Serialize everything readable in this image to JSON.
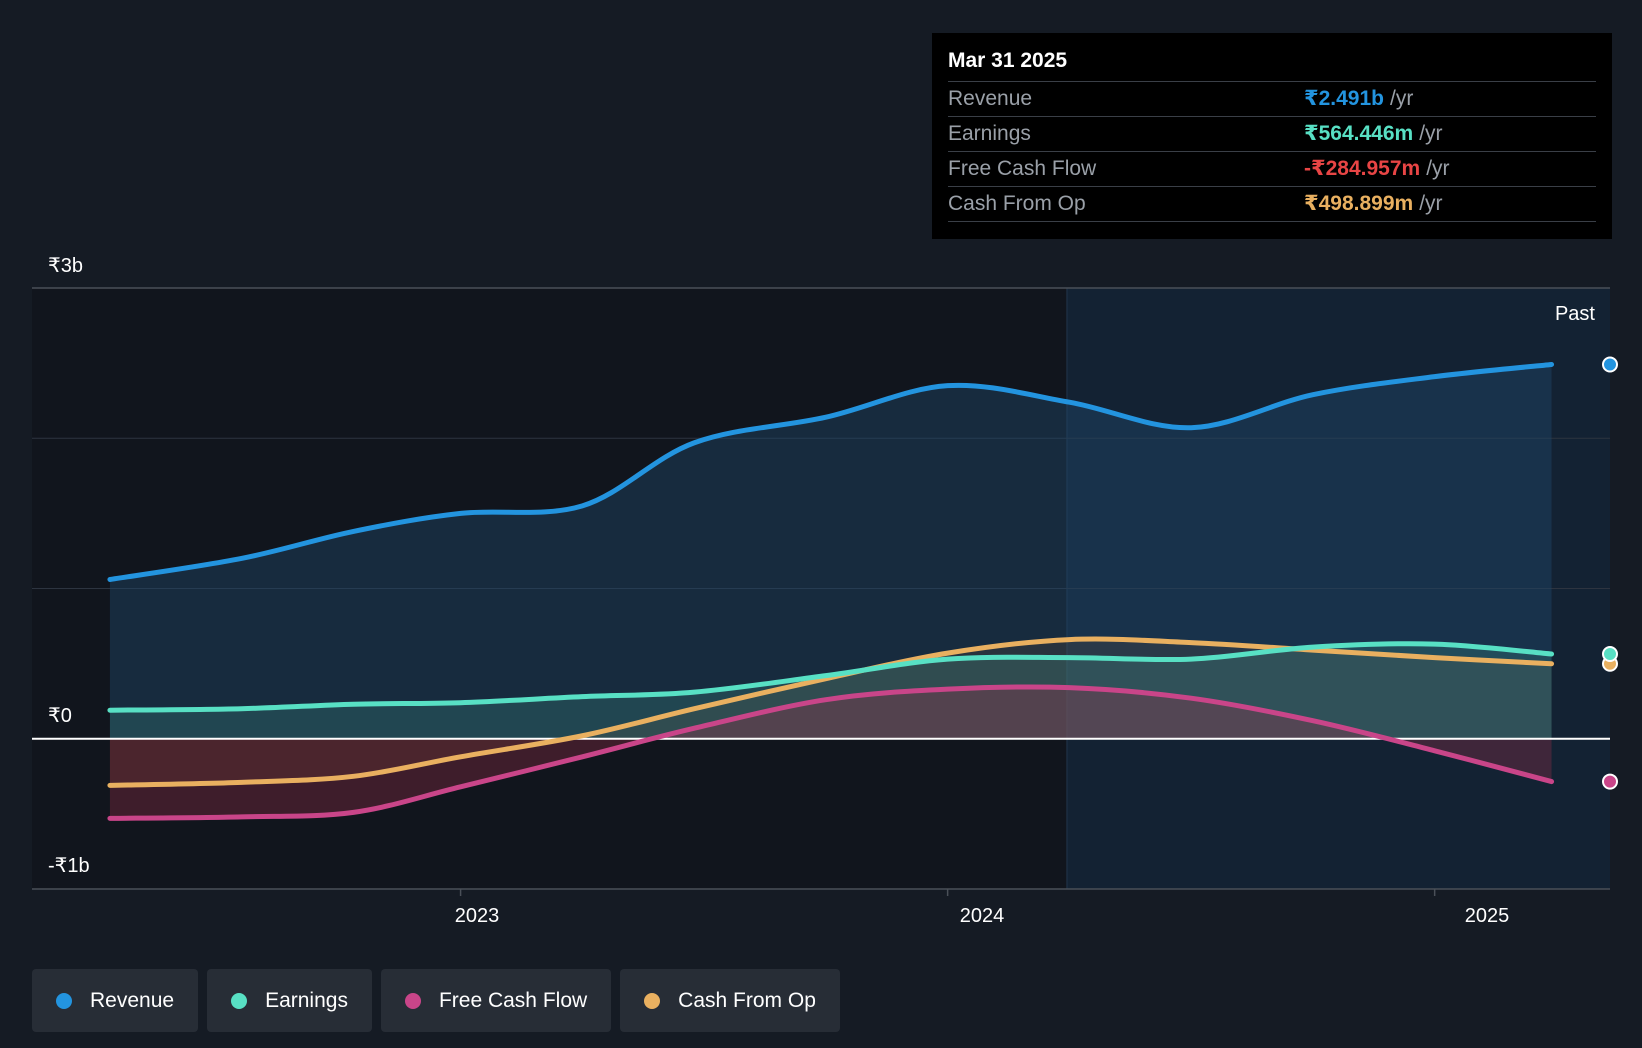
{
  "chart_data": {
    "type": "area",
    "x_ticks": [
      "2023",
      "2024",
      "2025"
    ],
    "y_ticks": [
      "₹3b",
      "₹0",
      "-₹1b"
    ],
    "ylim": [
      -1,
      3
    ],
    "y_unit": "₹b",
    "region_label": "Past",
    "series": [
      {
        "name": "Revenue",
        "color": "#2394df",
        "x": [
          2022.28,
          2022.55,
          2022.78,
          2023.0,
          2023.25,
          2023.48,
          2023.75,
          2024.0,
          2024.25,
          2024.5,
          2024.75,
          2025.0,
          2025.24
        ],
        "y": [
          1.06,
          1.2,
          1.38,
          1.5,
          1.55,
          1.97,
          2.14,
          2.35,
          2.24,
          2.07,
          2.29,
          2.41,
          2.491
        ]
      },
      {
        "name": "Earnings",
        "color": "#58e0c4",
        "x": [
          2022.28,
          2022.55,
          2022.78,
          2023.0,
          2023.25,
          2023.48,
          2023.75,
          2024.0,
          2024.25,
          2024.5,
          2024.75,
          2025.0,
          2025.24
        ],
        "y": [
          0.19,
          0.2,
          0.23,
          0.24,
          0.28,
          0.31,
          0.42,
          0.53,
          0.54,
          0.53,
          0.61,
          0.63,
          0.564
        ]
      },
      {
        "name": "Free Cash Flow",
        "color": "#c94589",
        "x": [
          2022.28,
          2022.55,
          2022.78,
          2023.0,
          2023.25,
          2023.48,
          2023.75,
          2024.0,
          2024.25,
          2024.5,
          2024.75,
          2025.0,
          2025.24
        ],
        "y": [
          -0.53,
          -0.52,
          -0.49,
          -0.32,
          -0.12,
          0.07,
          0.26,
          0.33,
          0.34,
          0.27,
          0.12,
          -0.08,
          -0.285
        ]
      },
      {
        "name": "Cash From Op",
        "color": "#e9b060",
        "x": [
          2022.28,
          2022.55,
          2022.78,
          2023.0,
          2023.25,
          2023.48,
          2023.75,
          2024.0,
          2024.25,
          2024.5,
          2024.75,
          2025.0,
          2025.24
        ],
        "y": [
          -0.31,
          -0.29,
          -0.25,
          -0.12,
          0.02,
          0.2,
          0.4,
          0.57,
          0.66,
          0.64,
          0.59,
          0.54,
          0.499
        ]
      }
    ]
  },
  "tooltip": {
    "date": "Mar 31 2025",
    "rows": [
      {
        "label": "Revenue",
        "value": "₹2.491b",
        "unit": "/yr",
        "color": "#2394df"
      },
      {
        "label": "Earnings",
        "value": "₹564.446m",
        "unit": "/yr",
        "color": "#58e0c4"
      },
      {
        "label": "Free Cash Flow",
        "value": "-₹284.957m",
        "unit": "/yr",
        "color": "#e84545"
      },
      {
        "label": "Cash From Op",
        "value": "₹498.899m",
        "unit": "/yr",
        "color": "#e9b060"
      }
    ]
  },
  "legend": [
    {
      "label": "Revenue",
      "color": "#2394df"
    },
    {
      "label": "Earnings",
      "color": "#58e0c4"
    },
    {
      "label": "Free Cash Flow",
      "color": "#c94589"
    },
    {
      "label": "Cash From Op",
      "color": "#e9b060"
    }
  ]
}
